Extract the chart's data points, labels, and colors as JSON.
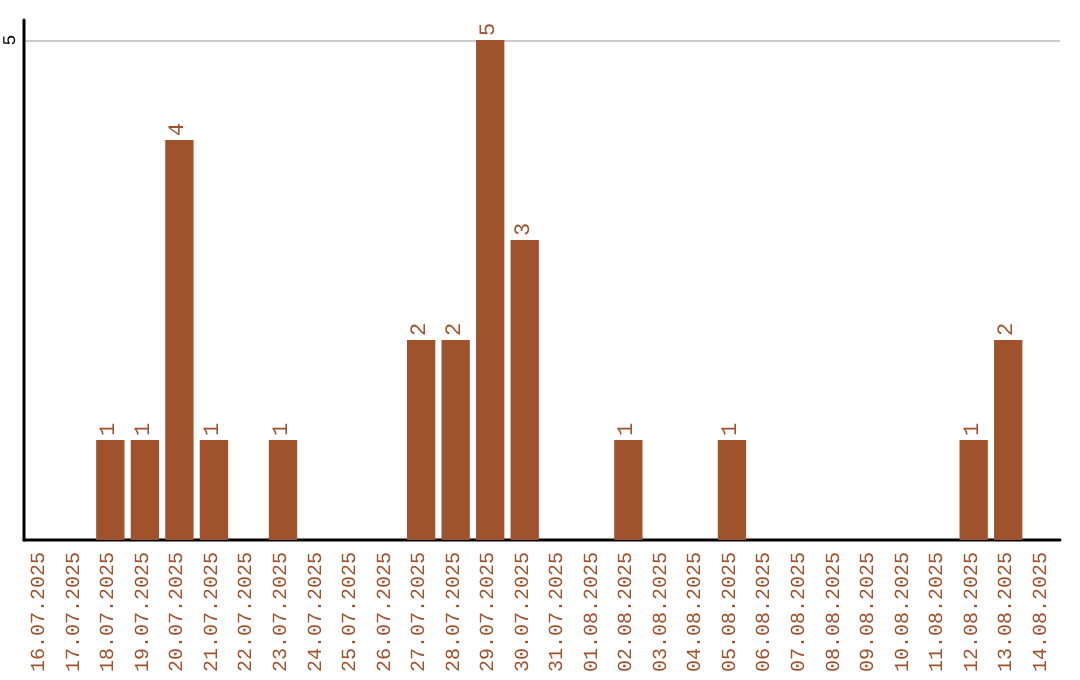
{
  "chart_data": {
    "type": "bar",
    "categories": [
      "16.07.2025",
      "17.07.2025",
      "18.07.2025",
      "19.07.2025",
      "20.07.2025",
      "21.07.2025",
      "22.07.2025",
      "23.07.2025",
      "24.07.2025",
      "25.07.2025",
      "26.07.2025",
      "27.07.2025",
      "28.07.2025",
      "29.07.2025",
      "30.07.2025",
      "31.07.2025",
      "01.08.2025",
      "02.08.2025",
      "03.08.2025",
      "04.08.2025",
      "05.08.2025",
      "06.08.2025",
      "07.08.2025",
      "08.08.2025",
      "09.08.2025",
      "10.08.2025",
      "11.08.2025",
      "12.08.2025",
      "13.08.2025",
      "14.08.2025"
    ],
    "values": [
      0,
      0,
      1,
      1,
      4,
      1,
      0,
      1,
      0,
      0,
      0,
      2,
      2,
      5,
      3,
      0,
      0,
      1,
      0,
      0,
      1,
      0,
      0,
      0,
      0,
      0,
      0,
      1,
      2,
      0
    ],
    "value_labels": [
      null,
      null,
      "1",
      "1",
      "4",
      "1",
      null,
      "1",
      null,
      null,
      null,
      "2",
      "2",
      "5",
      "3",
      null,
      null,
      "1",
      null,
      null,
      "1",
      null,
      null,
      null,
      null,
      null,
      null,
      "1",
      "2",
      null
    ],
    "color": "#a0522d",
    "ylim": [
      0,
      5.2
    ],
    "yticks": [
      5
    ],
    "grid": "y"
  }
}
